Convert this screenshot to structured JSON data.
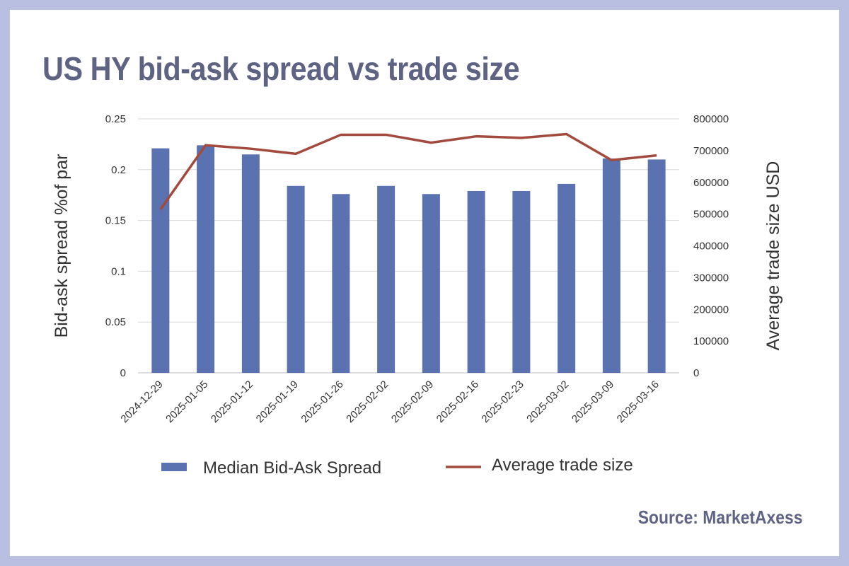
{
  "title": "US HY bid-ask spread vs trade size",
  "source": "Source: MarketAxess",
  "colors": {
    "background": "#b9bfe0",
    "bar": "#5b72b0",
    "line": "#a34a3e",
    "title": "#5e6384",
    "grid": "#d9d9d9"
  },
  "chart_data": {
    "type": "bar+line",
    "categories": [
      "2024-12-29",
      "2025-01-05",
      "2025-01-12",
      "2025-01-19",
      "2025-01-26",
      "2025-02-02",
      "2025-02-09",
      "2025-02-16",
      "2025-02-23",
      "2025-03-02",
      "2025-03-09",
      "2025-03-16"
    ],
    "series": [
      {
        "name": "Median Bid-Ask Spread",
        "type": "bar",
        "axis": "left",
        "values": [
          0.221,
          0.224,
          0.215,
          0.184,
          0.176,
          0.184,
          0.176,
          0.179,
          0.179,
          0.186,
          0.211,
          0.21
        ]
      },
      {
        "name": "Average trade size",
        "type": "line",
        "axis": "right",
        "values": [
          515000,
          717000,
          706000,
          690000,
          750000,
          750000,
          725000,
          745000,
          740000,
          752000,
          670000,
          685000
        ]
      }
    ],
    "ylabel": "Bid-ask spread %of par",
    "y2label": "Average trade size USD",
    "ylim": [
      0,
      0.25
    ],
    "y2lim": [
      0,
      800000
    ],
    "yticks": [
      "0",
      "0.05",
      "0.1",
      "0.15",
      "0.2",
      "0.25"
    ],
    "y2ticks": [
      "0",
      "100000",
      "200000",
      "300000",
      "400000",
      "500000",
      "600000",
      "700000",
      "800000"
    ],
    "grid": true,
    "legend_position": "bottom"
  }
}
